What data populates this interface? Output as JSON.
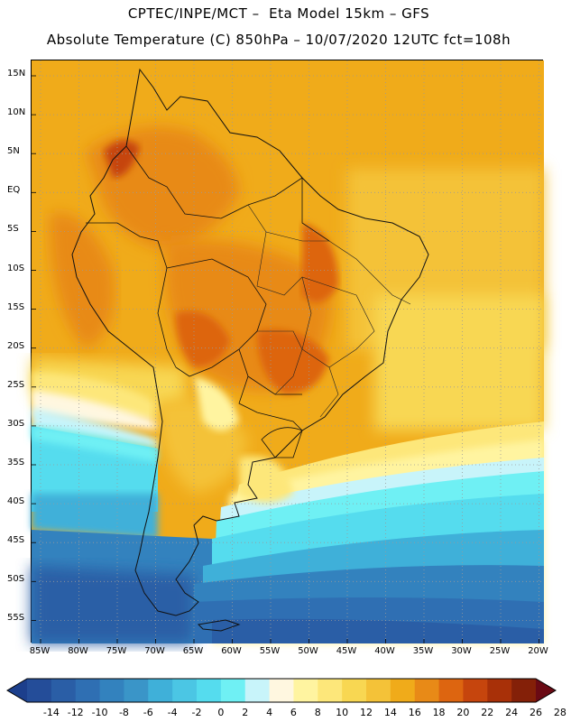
{
  "header": {
    "title_line1": "CPTEC/INPE/MCT –  Eta Model 15km – GFS",
    "title_line2": "Absolute Temperature (C) 850hPa – 10/07/2020 12UTC fct=108h"
  },
  "map": {
    "lat_labels": [
      "15N",
      "10N",
      "5N",
      "EQ",
      "5S",
      "10S",
      "15S",
      "20S",
      "25S",
      "30S",
      "35S",
      "40S",
      "45S",
      "50S",
      "55S"
    ],
    "lon_labels": [
      "85W",
      "80W",
      "75W",
      "70W",
      "65W",
      "60W",
      "55W",
      "50W",
      "45W",
      "40W",
      "35W",
      "30W",
      "25W",
      "20W"
    ],
    "gridlines": "dotted",
    "region": "South America"
  },
  "legend": {
    "labels": [
      "-14",
      "-12",
      "-10",
      "-8",
      "-6",
      "-4",
      "-2",
      "0",
      "2",
      "4",
      "6",
      "8",
      "10",
      "12",
      "14",
      "16",
      "18",
      "20",
      "22",
      "24",
      "26",
      "28"
    ],
    "colors": [
      "#1c3f8c",
      "#244d99",
      "#2a5ea6",
      "#2f6fb3",
      "#3382be",
      "#3a95c8",
      "#3fb0d9",
      "#4bc6e4",
      "#55dcee",
      "#6ff0f4",
      "#c8f4fa",
      "#fff7e0",
      "#fff4a0",
      "#fde77a",
      "#f8d752",
      "#f4c238",
      "#f0ab1a",
      "#e88a17",
      "#dd6510",
      "#c6450d",
      "#a83008",
      "#842008",
      "#6a0a14"
    ]
  }
}
